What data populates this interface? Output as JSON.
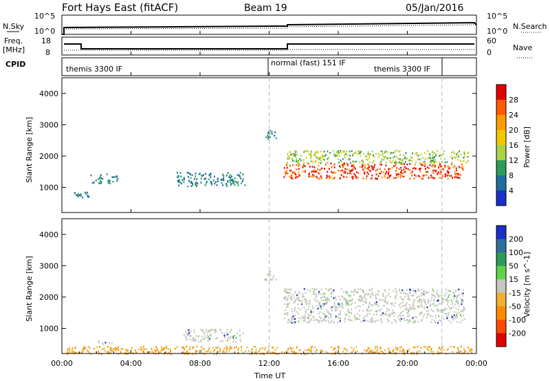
{
  "header": {
    "station": "Fort Hays East (fitACF)",
    "beam": "Beam 19",
    "date": "05/Jan/2016"
  },
  "nsky_panel": {
    "left_label": "N.Sky",
    "right_label": "N.Search",
    "left_ticks": [
      "10^5",
      "10^0"
    ],
    "right_ticks": [
      "10^5",
      "10^0"
    ]
  },
  "freq_panel": {
    "left_label_line1": "Freq.",
    "left_label_line2": "[MHz]",
    "right_label": "Nave",
    "left_ticks": [
      "18",
      "8"
    ],
    "right_ticks": [
      "60",
      "0"
    ]
  },
  "cpid_panel": {
    "label": "CPID",
    "segments": [
      {
        "text": "themis 3300 IF",
        "start_hour": 0,
        "end_hour": 12
      },
      {
        "text": "normal (fast) 151 IF",
        "start_hour": 12,
        "end_hour": 22
      },
      {
        "text": "themis 3300 IF",
        "start_hour": 12,
        "end_hour": 22
      }
    ]
  },
  "time_axis": {
    "title": "Time UT",
    "ticks": [
      "00:00",
      "04:00",
      "08:00",
      "12:00",
      "16:00",
      "20:00",
      "00:00"
    ],
    "tick_hours": [
      0,
      4,
      8,
      12,
      16,
      20,
      24
    ]
  },
  "chart_data": [
    {
      "type": "heatmap",
      "title": "Power",
      "xlabel": "Time UT",
      "ylabel": "Slant Range [km]",
      "ylim": [
        200,
        4500
      ],
      "yticks": [
        1000,
        2000,
        3000,
        4000
      ],
      "colorbar_label": "Power [dB]",
      "colorbar_ticks": [
        "28",
        "24",
        "20",
        "16",
        "12",
        "8",
        "4"
      ],
      "colorbar_colors": [
        "#e00000",
        "#ff5a00",
        "#ff9a00",
        "#f0c800",
        "#a8d24a",
        "#2f9b5a",
        "#1f6e9e",
        "#1a2ec8"
      ],
      "regions": [
        {
          "hour_start": 0.7,
          "hour_end": 1.6,
          "range_start": 700,
          "range_end": 900,
          "value": 8
        },
        {
          "hour_start": 1.6,
          "hour_end": 3.2,
          "range_start": 1150,
          "range_end": 1450,
          "value": 6
        },
        {
          "hour_start": 6.6,
          "hour_end": 10.6,
          "range_start": 1050,
          "range_end": 1500,
          "value": 6
        },
        {
          "hour_start": 11.7,
          "hour_end": 12.4,
          "range_start": 2550,
          "range_end": 2850,
          "value": 10
        },
        {
          "hour_start": 12.8,
          "hour_end": 23.3,
          "range_start": 1300,
          "range_end": 1800,
          "value": 26
        },
        {
          "hour_start": 13.0,
          "hour_end": 23.5,
          "range_start": 1800,
          "range_end": 2200,
          "value": 14
        }
      ]
    },
    {
      "type": "heatmap",
      "title": "Velocity",
      "xlabel": "Time UT",
      "ylabel": "Slant Range [km]",
      "ylim": [
        200,
        4500
      ],
      "yticks": [
        1000,
        2000,
        3000,
        4000
      ],
      "colorbar_label": "Velocity [m s^-1]",
      "colorbar_ticks": [
        "200",
        "100",
        "50",
        "15",
        "-15",
        "-50",
        "-100",
        "-200"
      ],
      "colorbar_colors": [
        "#1a2ec8",
        "#2f6e9e",
        "#2f9b5a",
        "#5fd24a",
        "#c8c8c0",
        "#f0b030",
        "#ff8a00",
        "#ff4a00",
        "#e00000"
      ],
      "regions": [
        {
          "hour_start": 2.0,
          "hour_end": 3.0,
          "range_start": 500,
          "range_end": 650,
          "value": 0
        },
        {
          "hour_start": 7.0,
          "hour_end": 10.5,
          "range_start": 600,
          "range_end": 1000,
          "value": 0
        },
        {
          "hour_start": 11.7,
          "hour_end": 12.4,
          "range_start": 2550,
          "range_end": 2850,
          "value": 0
        },
        {
          "hour_start": 12.8,
          "hour_end": 23.3,
          "range_start": 1200,
          "range_end": 2300,
          "value": 0
        },
        {
          "hour_start": 0.2,
          "hour_end": 23.8,
          "range_start": 200,
          "range_end": 450,
          "value": -40
        }
      ]
    }
  ]
}
